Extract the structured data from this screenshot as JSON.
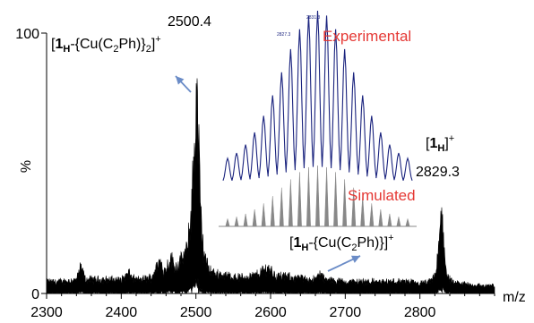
{
  "chart_data": {
    "type": "line",
    "xlabel": "m/z",
    "ylabel": "%",
    "xlim": [
      2300,
      2900
    ],
    "ylim": [
      0,
      100
    ],
    "x_ticks": [
      2300,
      2400,
      2500,
      2600,
      2700,
      2800
    ],
    "y_ticks": [
      0,
      100
    ],
    "peaks": [
      {
        "mz": 2500.4,
        "intensity": 100,
        "label": "2500.4"
      },
      {
        "mz": 2829.3,
        "intensity": 38,
        "label": "2829.3"
      }
    ],
    "series": [
      {
        "x": [
          2300,
          2320,
          2340,
          2346,
          2352,
          2370,
          2400,
          2410,
          2418,
          2425,
          2440,
          2452,
          2458,
          2466,
          2472,
          2480,
          2488,
          2494,
          2498,
          2500.4,
          2503,
          2506,
          2510,
          2516,
          2524,
          2540,
          2560,
          2580,
          2596,
          2600,
          2606,
          2630,
          2660,
          2666,
          2672,
          2700,
          2740,
          2780,
          2800,
          2815,
          2822,
          2826,
          2829.3,
          2832,
          2836,
          2845,
          2860,
          2880,
          2900
        ],
        "y": [
          5,
          5,
          6,
          12,
          6,
          6,
          6,
          9,
          6,
          6,
          7,
          15,
          10,
          17,
          12,
          15,
          20,
          40,
          70,
          100,
          80,
          40,
          20,
          12,
          9,
          8,
          7,
          8,
          12,
          11,
          8,
          7,
          6,
          9,
          6,
          5,
          5,
          5,
          4,
          5,
          10,
          25,
          38,
          25,
          8,
          4,
          4,
          3,
          3
        ]
      }
    ],
    "inset": {
      "experimental": {
        "label": "Experimental",
        "color": "#1a237e",
        "peak_labels": [
          "2827.3",
          "2831.3"
        ],
        "n_lines": 21
      },
      "simulated": {
        "label": "Simulated",
        "color": "#888888",
        "n_lines": 21
      },
      "label_color": "#e53935"
    },
    "annotations": [
      {
        "html_prefix": "[",
        "bold": "1",
        "sub": "H",
        "mid": "-{Cu(C",
        "sub2": "2",
        "tail": "Ph)}",
        "sub3": "2",
        "close": "]",
        "sup": "+"
      },
      {
        "html_prefix": "[",
        "bold": "1",
        "sub": "H",
        "close": "]",
        "sup": "+"
      },
      {
        "html_prefix": "[",
        "bold": "1",
        "sub": "H",
        "mid": "-{Cu(C",
        "sub2": "2",
        "tail": "Ph)}",
        "close": "]",
        "sup": "+"
      }
    ],
    "arrow_color": "#6b8cc7"
  }
}
